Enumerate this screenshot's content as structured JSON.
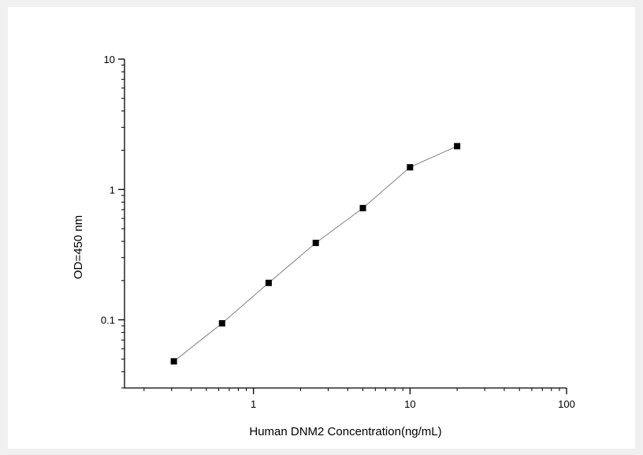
{
  "chart_data": {
    "type": "scatter",
    "title": "",
    "xlabel": "Human DNM2 Concentration(ng/mL)",
    "ylabel": "OD=450 nm",
    "xscale": "log",
    "yscale": "log",
    "xlim": [
      0.15,
      100
    ],
    "ylim": [
      0.03,
      10
    ],
    "x_ticks": [
      {
        "value": 1,
        "label": "1"
      },
      {
        "value": 10,
        "label": "10"
      },
      {
        "value": 100,
        "label": "100"
      }
    ],
    "y_ticks": [
      {
        "value": 0.1,
        "label": "0.1"
      },
      {
        "value": 1,
        "label": "1"
      },
      {
        "value": 10,
        "label": "10"
      }
    ],
    "grid": false,
    "legend": "none",
    "connect_points": true,
    "marker": "square",
    "colors": {
      "marker": "#000000",
      "line": "#7f7f7f",
      "axis": "#000000"
    },
    "series": [
      {
        "x": [
          0.31,
          0.63,
          1.25,
          2.5,
          5,
          10,
          20
        ],
        "y": [
          0.048,
          0.094,
          0.192,
          0.389,
          0.72,
          1.48,
          2.15
        ]
      }
    ]
  }
}
